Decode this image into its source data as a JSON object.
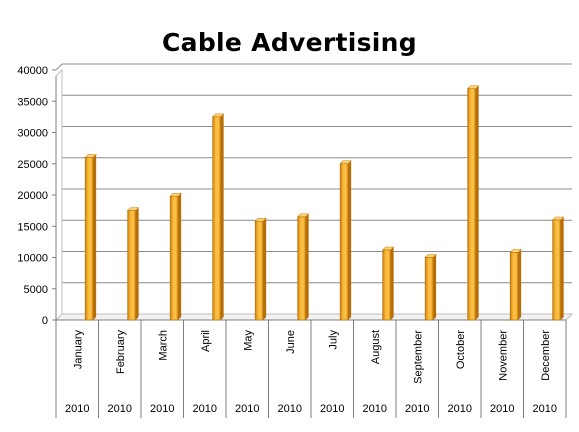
{
  "chart_data": {
    "type": "bar",
    "title": "Cable Advertising",
    "categories": [
      "January",
      "February",
      "March",
      "April",
      "May",
      "June",
      "July",
      "August",
      "September",
      "October",
      "November",
      "December"
    ],
    "group_labels": [
      "2010",
      "2010",
      "2010",
      "2010",
      "2010",
      "2010",
      "2010",
      "2010",
      "2010",
      "2010",
      "2010",
      "2010"
    ],
    "values": [
      26000,
      17500,
      19800,
      32500,
      15800,
      16500,
      25000,
      11200,
      10000,
      37000,
      10800,
      16000
    ],
    "ylim": [
      0,
      40000
    ],
    "yticks": [
      "0",
      "5000",
      "10000",
      "15000",
      "20000",
      "25000",
      "30000",
      "35000",
      "40000"
    ],
    "grid": true,
    "legend": "none",
    "bar_color": "#F4A625"
  }
}
